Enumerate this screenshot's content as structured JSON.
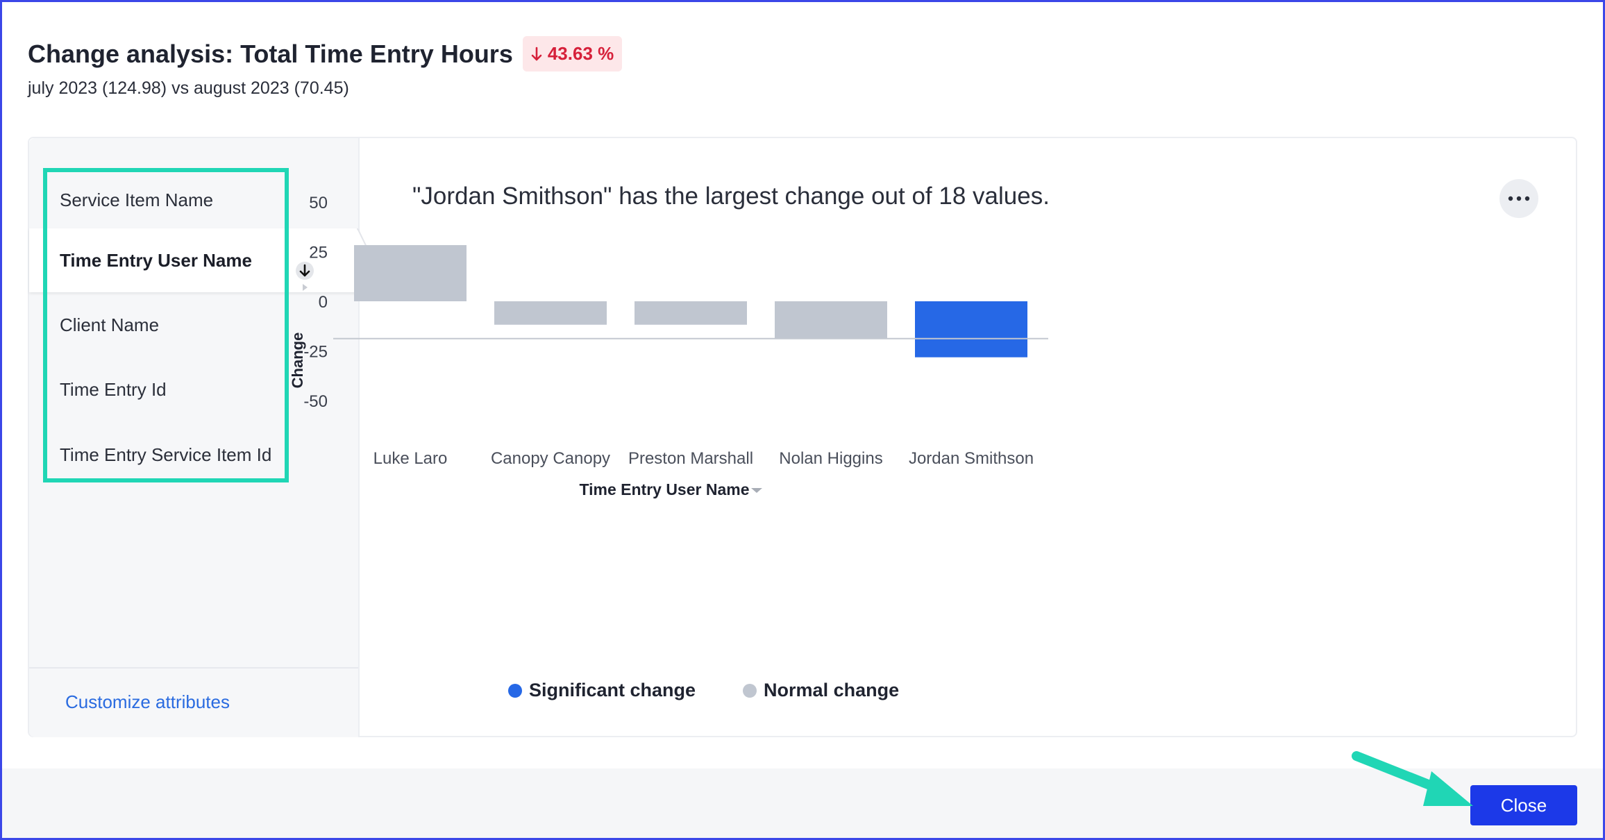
{
  "header": {
    "title": "Change analysis: Total Time Entry Hours",
    "badge": "43.63 %",
    "badge_icon": "arrow-down-icon",
    "subtitle": "july 2023 (124.98) vs august 2023 (70.45)"
  },
  "sidebar": {
    "items": [
      {
        "label": "Service Item Name",
        "selected": false
      },
      {
        "label": "Time Entry User Name",
        "selected": true
      },
      {
        "label": "Client Name",
        "selected": false
      },
      {
        "label": "Time Entry Id",
        "selected": false
      },
      {
        "label": "Time Entry Service Item Id",
        "selected": false
      }
    ],
    "customize_label": "Customize attributes"
  },
  "insight": "\"Jordan Smithson\" has the largest change out of 18 values.",
  "more_icon": "ellipsis-icon",
  "sort_icon": "arrow-down-icon",
  "chart_data": {
    "type": "bar",
    "title": "",
    "xlabel": "Time Entry User Name",
    "ylabel": "Change",
    "ylim": [
      -50,
      50
    ],
    "yticks": [
      50,
      25,
      0,
      -25,
      -50
    ],
    "categories": [
      "Luke Laro",
      "Canopy Canopy",
      "Preston Marshall",
      "Nolan Higgins",
      "Jordan Smithson"
    ],
    "values": [
      28.3,
      -11.8,
      -11.8,
      -18.8,
      -28.2
    ],
    "significant": [
      false,
      false,
      false,
      false,
      true
    ],
    "reference_line": -18.8,
    "grid": false,
    "legend": [
      {
        "label": "Significant change",
        "color": "#2668e6"
      },
      {
        "label": "Normal change",
        "color": "#c0c6d0"
      }
    ]
  },
  "colors": {
    "significant": "#2668e6",
    "normal": "#c0c6d0",
    "accent": "#1c39e8",
    "highlight": "#20d6b5",
    "negative": "#d6203a"
  },
  "footer": {
    "close_label": "Close"
  }
}
